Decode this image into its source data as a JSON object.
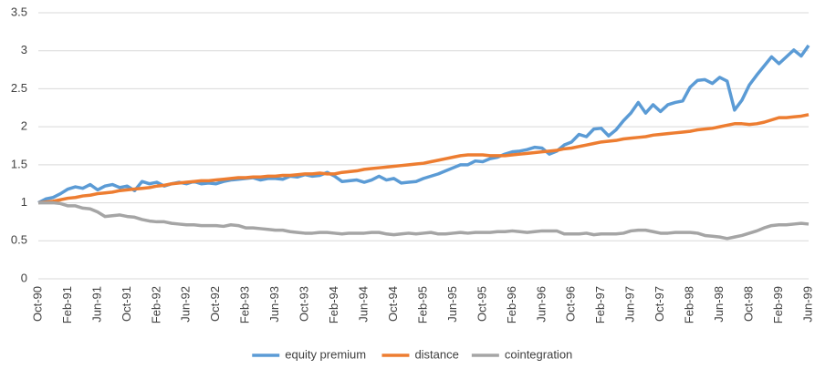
{
  "chart_data": {
    "type": "line",
    "categories": [
      "Oct-90",
      null,
      null,
      null,
      "Feb-91",
      null,
      null,
      null,
      "Jun-91",
      null,
      null,
      null,
      "Oct-91",
      null,
      null,
      null,
      "Feb-92",
      null,
      null,
      null,
      "Jun-92",
      null,
      null,
      null,
      "Oct-92",
      null,
      null,
      null,
      "Feb-93",
      null,
      null,
      null,
      "Jun-93",
      null,
      null,
      null,
      "Oct-93",
      null,
      null,
      null,
      "Feb-94",
      null,
      null,
      null,
      "Jun-94",
      null,
      null,
      null,
      "Oct-94",
      null,
      null,
      null,
      "Feb-95",
      null,
      null,
      null,
      "Jun-95",
      null,
      null,
      null,
      "Oct-95",
      null,
      null,
      null,
      "Feb-96",
      null,
      null,
      null,
      "Jun-96",
      null,
      null,
      null,
      "Oct-96",
      null,
      null,
      null,
      "Feb-97",
      null,
      null,
      null,
      "Jun-97",
      null,
      null,
      null,
      "Oct-97",
      null,
      null,
      null,
      "Feb-98",
      null,
      null,
      null,
      "Jun-98",
      null,
      null,
      null,
      "Oct-98",
      null,
      null,
      null,
      "Feb-99",
      null,
      null,
      null,
      "Jun-99"
    ],
    "series": [
      {
        "name": "equity premium",
        "color": "#5b9bd5",
        "values": [
          1.0,
          1.05,
          1.07,
          1.12,
          1.18,
          1.21,
          1.19,
          1.24,
          1.17,
          1.22,
          1.24,
          1.2,
          1.22,
          1.16,
          1.28,
          1.25,
          1.27,
          1.22,
          1.25,
          1.27,
          1.25,
          1.28,
          1.25,
          1.26,
          1.25,
          1.28,
          1.3,
          1.31,
          1.32,
          1.33,
          1.3,
          1.32,
          1.32,
          1.31,
          1.35,
          1.34,
          1.37,
          1.35,
          1.36,
          1.4,
          1.35,
          1.28,
          1.29,
          1.3,
          1.27,
          1.3,
          1.35,
          1.3,
          1.32,
          1.26,
          1.27,
          1.28,
          1.32,
          1.35,
          1.38,
          1.42,
          1.46,
          1.5,
          1.5,
          1.55,
          1.54,
          1.58,
          1.6,
          1.64,
          1.67,
          1.68,
          1.7,
          1.73,
          1.72,
          1.64,
          1.68,
          1.76,
          1.8,
          1.9,
          1.87,
          1.97,
          1.98,
          1.88,
          1.96,
          2.08,
          2.18,
          2.32,
          2.18,
          2.29,
          2.2,
          2.29,
          2.32,
          2.34,
          2.52,
          2.61,
          2.62,
          2.57,
          2.65,
          2.6,
          2.22,
          2.35,
          2.55,
          2.68,
          2.8,
          2.92,
          2.83,
          2.92,
          3.01,
          2.93,
          3.07
        ]
      },
      {
        "name": "distance",
        "color": "#ed7d31",
        "values": [
          1.0,
          1.01,
          1.02,
          1.04,
          1.06,
          1.07,
          1.09,
          1.1,
          1.12,
          1.13,
          1.14,
          1.16,
          1.17,
          1.18,
          1.19,
          1.2,
          1.22,
          1.23,
          1.25,
          1.26,
          1.27,
          1.28,
          1.29,
          1.29,
          1.3,
          1.31,
          1.32,
          1.33,
          1.33,
          1.34,
          1.34,
          1.35,
          1.35,
          1.36,
          1.36,
          1.37,
          1.38,
          1.38,
          1.39,
          1.38,
          1.38,
          1.4,
          1.41,
          1.42,
          1.44,
          1.45,
          1.46,
          1.47,
          1.48,
          1.49,
          1.5,
          1.51,
          1.52,
          1.54,
          1.56,
          1.58,
          1.6,
          1.62,
          1.63,
          1.63,
          1.63,
          1.62,
          1.62,
          1.62,
          1.63,
          1.64,
          1.65,
          1.66,
          1.67,
          1.68,
          1.69,
          1.71,
          1.72,
          1.74,
          1.76,
          1.78,
          1.8,
          1.81,
          1.82,
          1.84,
          1.85,
          1.86,
          1.87,
          1.89,
          1.9,
          1.91,
          1.92,
          1.93,
          1.94,
          1.96,
          1.97,
          1.98,
          2.0,
          2.02,
          2.04,
          2.04,
          2.03,
          2.04,
          2.06,
          2.09,
          2.12,
          2.12,
          2.13,
          2.14,
          2.16
        ]
      },
      {
        "name": "cointegration",
        "color": "#a5a5a5",
        "values": [
          1.0,
          1.0,
          1.0,
          0.99,
          0.96,
          0.96,
          0.93,
          0.92,
          0.88,
          0.82,
          0.83,
          0.84,
          0.82,
          0.81,
          0.78,
          0.76,
          0.75,
          0.75,
          0.73,
          0.72,
          0.71,
          0.71,
          0.7,
          0.7,
          0.7,
          0.69,
          0.71,
          0.7,
          0.67,
          0.67,
          0.66,
          0.65,
          0.64,
          0.64,
          0.62,
          0.61,
          0.6,
          0.6,
          0.61,
          0.61,
          0.6,
          0.59,
          0.6,
          0.6,
          0.6,
          0.61,
          0.61,
          0.59,
          0.58,
          0.59,
          0.6,
          0.59,
          0.6,
          0.61,
          0.59,
          0.59,
          0.6,
          0.61,
          0.6,
          0.61,
          0.61,
          0.61,
          0.62,
          0.62,
          0.63,
          0.62,
          0.61,
          0.62,
          0.63,
          0.63,
          0.63,
          0.59,
          0.59,
          0.59,
          0.6,
          0.58,
          0.59,
          0.59,
          0.59,
          0.6,
          0.63,
          0.64,
          0.64,
          0.62,
          0.6,
          0.6,
          0.61,
          0.61,
          0.61,
          0.6,
          0.57,
          0.56,
          0.55,
          0.53,
          0.55,
          0.57,
          0.6,
          0.63,
          0.67,
          0.7,
          0.71,
          0.71,
          0.72,
          0.73,
          0.72
        ]
      }
    ],
    "ylim": [
      0,
      3.5
    ],
    "yticks": [
      0,
      0.5,
      1,
      1.5,
      2,
      2.5,
      3,
      3.5
    ],
    "grid": true,
    "legend": "bottom"
  }
}
